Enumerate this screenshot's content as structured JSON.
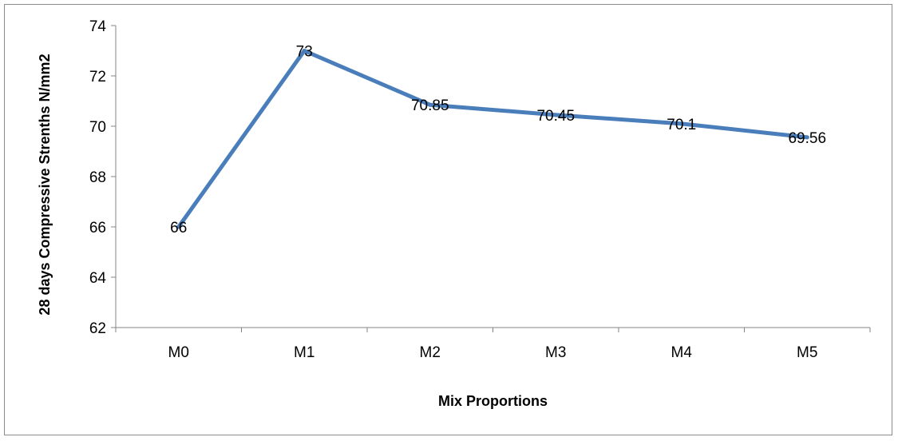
{
  "chart_data": {
    "type": "line",
    "title": "",
    "xlabel": "Mix Proportions",
    "ylabel": "28 days Compressive Strenths N/mm2",
    "categories": [
      "M0",
      "M1",
      "M2",
      "M3",
      "M4",
      "M5"
    ],
    "series": [
      {
        "values": [
          66,
          73,
          70.85,
          70.45,
          70.1,
          69.56
        ]
      }
    ],
    "data_labels": [
      "66",
      "73",
      "70.85",
      "70.45",
      "70.1",
      "69.56"
    ],
    "ylim": [
      62,
      74
    ],
    "y_ticks": [
      "62",
      "64",
      "66",
      "68",
      "70",
      "72",
      "74"
    ],
    "grid": false,
    "legend": "none",
    "line_color": "#4a7ebb"
  }
}
